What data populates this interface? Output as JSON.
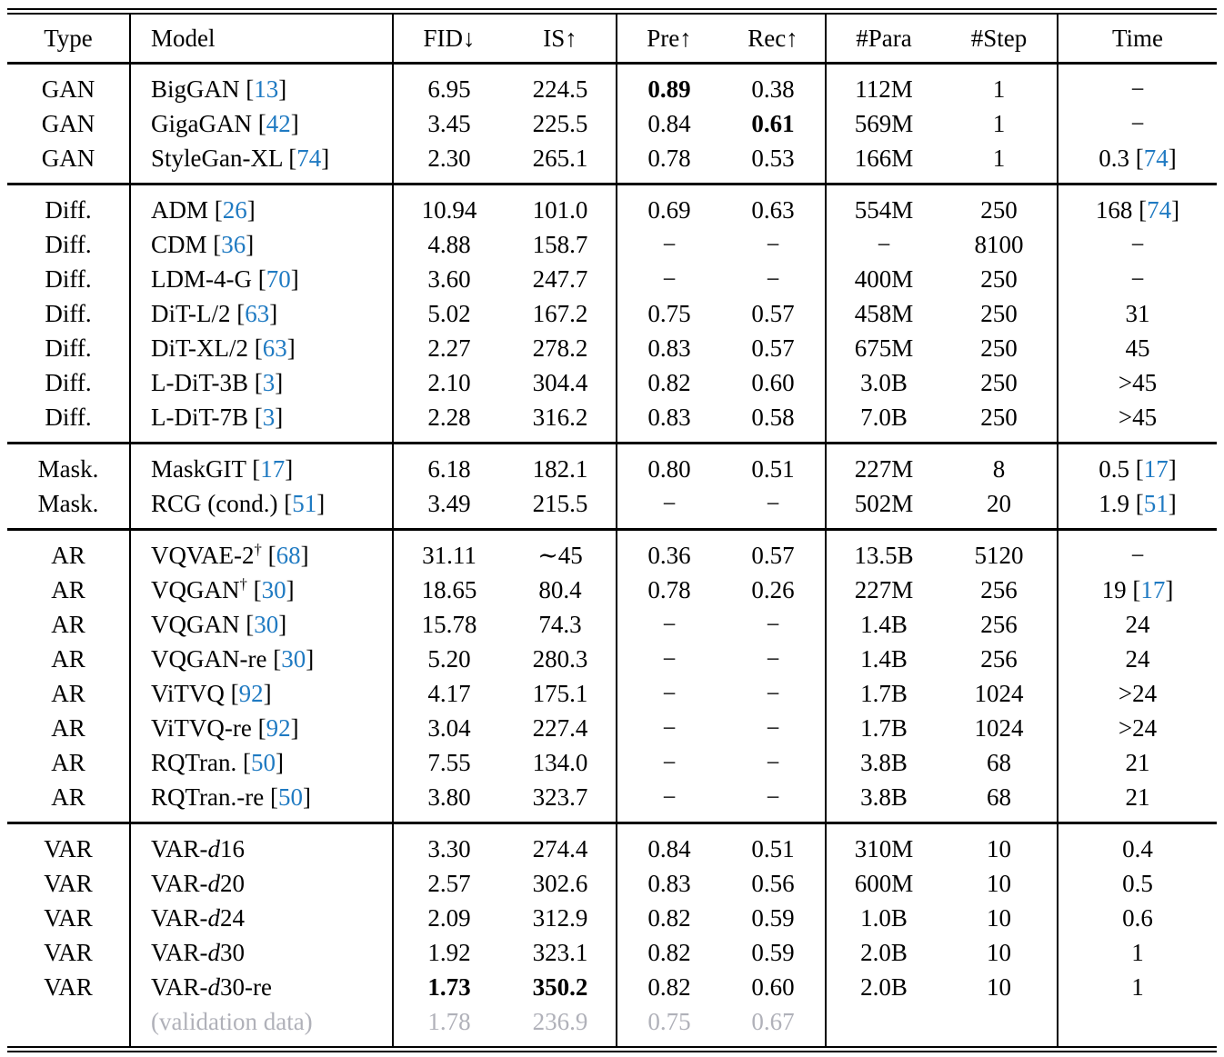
{
  "colors": {
    "citation_blue": "#1f7ac2",
    "muted_gray": "#b0b1b9",
    "text": "#000000",
    "background": "#ffffff"
  },
  "table": {
    "columns": [
      {
        "key": "type",
        "label": "Type"
      },
      {
        "key": "model",
        "label": "Model"
      },
      {
        "key": "fid",
        "label": "FID↓"
      },
      {
        "key": "is",
        "label": "IS↑"
      },
      {
        "key": "pre",
        "label": "Pre↑"
      },
      {
        "key": "rec",
        "label": "Rec↑"
      },
      {
        "key": "para",
        "label": "#Para"
      },
      {
        "key": "step",
        "label": "#Step"
      },
      {
        "key": "time",
        "label": "Time"
      }
    ],
    "sections": [
      {
        "id": "gan",
        "rows": [
          {
            "type": "GAN",
            "model": "BigGAN [[13]]",
            "fid": "6.95",
            "is": "224.5",
            "pre": "**0.89**",
            "rec": "0.38",
            "para": "112M",
            "step": "1",
            "time": "−"
          },
          {
            "type": "GAN",
            "model": "GigaGAN [[42]]",
            "fid": "3.45",
            "is": "225.5",
            "pre": "0.84",
            "rec": "**0.61**",
            "para": "569M",
            "step": "1",
            "time": "−"
          },
          {
            "type": "GAN",
            "model": "StyleGan-XL [[74]]",
            "fid": "2.30",
            "is": "265.1",
            "pre": "0.78",
            "rec": "0.53",
            "para": "166M",
            "step": "1",
            "time": "0.3 [[74]]"
          }
        ]
      },
      {
        "id": "diffusion",
        "rows": [
          {
            "type": "Diff.",
            "model": "ADM [[26]]",
            "fid": "10.94",
            "is": "101.0",
            "pre": "0.69",
            "rec": "0.63",
            "para": "554M",
            "step": "250",
            "time": "168 [[74]]"
          },
          {
            "type": "Diff.",
            "model": "CDM [[36]]",
            "fid": "4.88",
            "is": "158.7",
            "pre": "−",
            "rec": "−",
            "para": "−",
            "step": "8100",
            "time": "−"
          },
          {
            "type": "Diff.",
            "model": "LDM-4-G [[70]]",
            "fid": "3.60",
            "is": "247.7",
            "pre": "−",
            "rec": "−",
            "para": "400M",
            "step": "250",
            "time": "−"
          },
          {
            "type": "Diff.",
            "model": "DiT-L/2 [[63]]",
            "fid": "5.02",
            "is": "167.2",
            "pre": "0.75",
            "rec": "0.57",
            "para": "458M",
            "step": "250",
            "time": "31"
          },
          {
            "type": "Diff.",
            "model": "DiT-XL/2 [[63]]",
            "fid": "2.27",
            "is": "278.2",
            "pre": "0.83",
            "rec": "0.57",
            "para": "675M",
            "step": "250",
            "time": "45"
          },
          {
            "type": "Diff.",
            "model": "L-DiT-3B [[3]]",
            "fid": "2.10",
            "is": "304.4",
            "pre": "0.82",
            "rec": "0.60",
            "para": "3.0B",
            "step": "250",
            "time": ">45"
          },
          {
            "type": "Diff.",
            "model": "L-DiT-7B [[3]]",
            "fid": "2.28",
            "is": "316.2",
            "pre": "0.83",
            "rec": "0.58",
            "para": "7.0B",
            "step": "250",
            "time": ">45"
          }
        ]
      },
      {
        "id": "masked",
        "rows": [
          {
            "type": "Mask.",
            "model": "MaskGIT [[17]]",
            "fid": "6.18",
            "is": "182.1",
            "pre": "0.80",
            "rec": "0.51",
            "para": "227M",
            "step": "8",
            "time": "0.5 [[17]]"
          },
          {
            "type": "Mask.",
            "model": "RCG (cond.) [[51]]",
            "fid": "3.49",
            "is": "215.5",
            "pre": "−",
            "rec": "−",
            "para": "502M",
            "step": "20",
            "time": "1.9 [[51]]"
          }
        ]
      },
      {
        "id": "ar",
        "rows": [
          {
            "type": "AR",
            "model": "VQVAE-2^†^ [[68]]",
            "fid": "31.11",
            "is": "∼45",
            "pre": "0.36",
            "rec": "0.57",
            "para": "13.5B",
            "step": "5120",
            "time": "−"
          },
          {
            "type": "AR",
            "model": "VQGAN^†^ [[30]]",
            "fid": "18.65",
            "is": "80.4",
            "pre": "0.78",
            "rec": "0.26",
            "para": "227M",
            "step": "256",
            "time": "19 [[17]]"
          },
          {
            "type": "AR",
            "model": "VQGAN [[30]]",
            "fid": "15.78",
            "is": "74.3",
            "pre": "−",
            "rec": "−",
            "para": "1.4B",
            "step": "256",
            "time": "24"
          },
          {
            "type": "AR",
            "model": "VQGAN-re [[30]]",
            "fid": "5.20",
            "is": "280.3",
            "pre": "−",
            "rec": "−",
            "para": "1.4B",
            "step": "256",
            "time": "24"
          },
          {
            "type": "AR",
            "model": "ViTVQ [[92]]",
            "fid": "4.17",
            "is": "175.1",
            "pre": "−",
            "rec": "−",
            "para": "1.7B",
            "step": "1024",
            "time": ">24"
          },
          {
            "type": "AR",
            "model": "ViTVQ-re [[92]]",
            "fid": "3.04",
            "is": "227.4",
            "pre": "−",
            "rec": "−",
            "para": "1.7B",
            "step": "1024",
            "time": ">24"
          },
          {
            "type": "AR",
            "model": "RQTran. [[50]]",
            "fid": "7.55",
            "is": "134.0",
            "pre": "−",
            "rec": "−",
            "para": "3.8B",
            "step": "68",
            "time": "21"
          },
          {
            "type": "AR",
            "model": "RQTran.-re [[50]]",
            "fid": "3.80",
            "is": "323.7",
            "pre": "−",
            "rec": "−",
            "para": "3.8B",
            "step": "68",
            "time": "21"
          }
        ]
      },
      {
        "id": "var",
        "rows": [
          {
            "type": "VAR",
            "model": "VAR-{d}16",
            "fid": "3.30",
            "is": "274.4",
            "pre": "0.84",
            "rec": "0.51",
            "para": "310M",
            "step": "10",
            "time": "0.4"
          },
          {
            "type": "VAR",
            "model": "VAR-{d}20",
            "fid": "2.57",
            "is": "302.6",
            "pre": "0.83",
            "rec": "0.56",
            "para": "600M",
            "step": "10",
            "time": "0.5"
          },
          {
            "type": "VAR",
            "model": "VAR-{d}24",
            "fid": "2.09",
            "is": "312.9",
            "pre": "0.82",
            "rec": "0.59",
            "para": "1.0B",
            "step": "10",
            "time": "0.6"
          },
          {
            "type": "VAR",
            "model": "VAR-{d}30",
            "fid": "1.92",
            "is": "323.1",
            "pre": "0.82",
            "rec": "0.59",
            "para": "2.0B",
            "step": "10",
            "time": "1"
          },
          {
            "type": "VAR",
            "model": "VAR-{d}30-re",
            "fid": "**1.73**",
            "is": "**350.2**",
            "pre": "0.82",
            "rec": "0.60",
            "para": "2.0B",
            "step": "10",
            "time": "1"
          },
          {
            "type": "",
            "model": "(validation data)",
            "fid": "1.78",
            "is": "236.9",
            "pre": "0.75",
            "rec": "0.67",
            "para": "",
            "step": "",
            "time": "",
            "muted": true
          }
        ]
      }
    ]
  }
}
